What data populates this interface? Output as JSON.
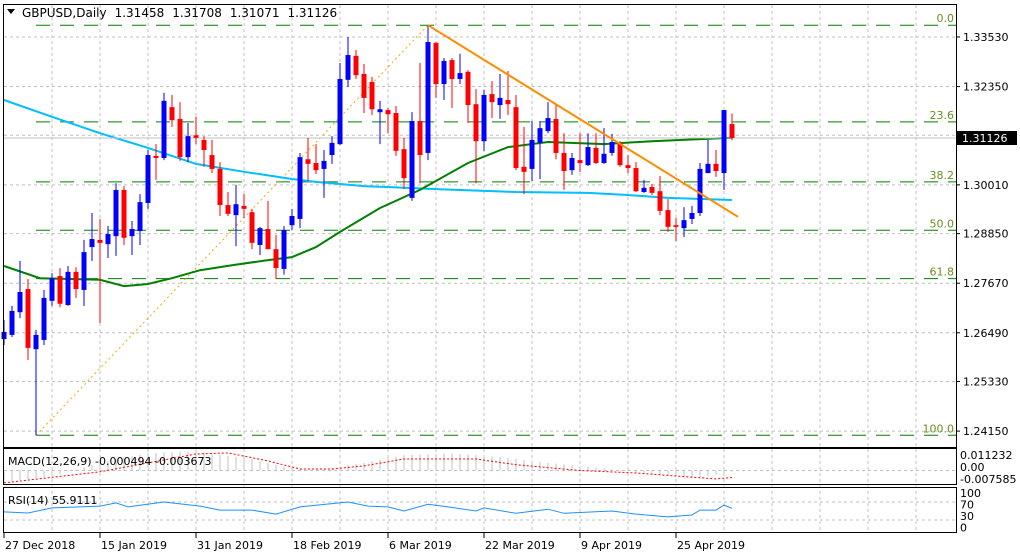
{
  "header": {
    "symbol_timeframe": "GBPUSD,Daily",
    "open": "1.31458",
    "high": "1.31708",
    "low": "1.31071",
    "close": "1.31126"
  },
  "colors": {
    "bull": "#0000ff",
    "bear": "#ff0000",
    "ma_long": "#00bfff",
    "ma_mid": "#008000",
    "trendline": "#ff8c00",
    "fib": "#008000",
    "macd_hist": "#c0c0c0",
    "macd_signal": "#ff0000",
    "rsi": "#1e90ff",
    "grid": "#c0c0c0"
  },
  "price_axis": {
    "labels": [
      "1.33530",
      "1.32350",
      "1.30010",
      "1.28850",
      "1.27670",
      "1.26490",
      "1.25330",
      "1.24150"
    ],
    "current_price": "1.31126"
  },
  "date_axis": {
    "labels": [
      "27 Dec 2018",
      "15 Jan 2019",
      "31 Jan 2019",
      "18 Feb 2019",
      "6 Mar 2019",
      "22 Mar 2019",
      "9 Apr 2019",
      "25 Apr 2019"
    ],
    "label_bars": [
      0,
      12,
      24,
      36,
      48,
      60,
      72,
      84
    ]
  },
  "chart_data": {
    "type": "candlestick",
    "symbol": "GBPUSD",
    "timeframe": "Daily",
    "ylim": [
      1.2403,
      1.3441
    ],
    "ohlc": [
      [
        1.2634,
        1.2679,
        1.262,
        1.2651
      ],
      [
        1.2644,
        1.2713,
        1.2639,
        1.2701
      ],
      [
        1.2698,
        1.282,
        1.2684,
        1.2746
      ],
      [
        1.2753,
        1.2777,
        1.2584,
        1.2613
      ],
      [
        1.261,
        1.2656,
        1.2405,
        1.2644
      ],
      [
        1.2632,
        1.2751,
        1.262,
        1.2732
      ],
      [
        1.2725,
        1.2791,
        1.2713,
        1.2779
      ],
      [
        1.2784,
        1.2803,
        1.271,
        1.2718
      ],
      [
        1.2715,
        1.2808,
        1.2713,
        1.2794
      ],
      [
        1.2794,
        1.2805,
        1.2732,
        1.2753
      ],
      [
        1.2751,
        1.287,
        1.2713,
        1.2841
      ],
      [
        1.2853,
        1.2934,
        1.282,
        1.2872
      ],
      [
        1.287,
        1.292,
        1.2672,
        1.2863
      ],
      [
        1.286,
        1.2903,
        1.2827,
        1.2884
      ],
      [
        1.2879,
        1.3005,
        1.2832,
        1.2989
      ],
      [
        1.2989,
        1.2998,
        1.2858,
        1.2875
      ],
      [
        1.2879,
        1.2915,
        1.2834,
        1.2896
      ],
      [
        1.2891,
        1.2979,
        1.2858,
        1.296
      ],
      [
        1.2958,
        1.3084,
        1.2944,
        1.3072
      ],
      [
        1.307,
        1.3098,
        1.3013,
        1.3065
      ],
      [
        1.3065,
        1.322,
        1.306,
        1.3201
      ],
      [
        1.3186,
        1.3215,
        1.3139,
        1.3155
      ],
      [
        1.3158,
        1.3198,
        1.3058,
        1.3067
      ],
      [
        1.3067,
        1.3148,
        1.3055,
        1.3117
      ],
      [
        1.3119,
        1.3163,
        1.3098,
        1.3113
      ],
      [
        1.3108,
        1.3117,
        1.3044,
        1.3084
      ],
      [
        1.3072,
        1.3108,
        1.3029,
        1.3039
      ],
      [
        1.3039,
        1.3055,
        1.2927,
        1.2953
      ],
      [
        1.2953,
        1.2984,
        1.2927,
        1.2932
      ],
      [
        1.2929,
        1.3001,
        1.2855,
        1.2955
      ],
      [
        1.2951,
        1.2979,
        1.2922,
        1.2944
      ],
      [
        1.2936,
        1.2944,
        1.2848,
        1.2863
      ],
      [
        1.2858,
        1.2901,
        1.2834,
        1.2898
      ],
      [
        1.2896,
        1.2963,
        1.2848,
        1.2848
      ],
      [
        1.2848,
        1.2882,
        1.2777,
        1.2803
      ],
      [
        1.2801,
        1.2903,
        1.2787,
        1.2893
      ],
      [
        1.2905,
        1.2944,
        1.2893,
        1.2927
      ],
      [
        1.292,
        1.3077,
        1.2898,
        1.3067
      ],
      [
        1.3062,
        1.3113,
        1.301,
        1.3051
      ],
      [
        1.3053,
        1.3098,
        1.3027,
        1.3036
      ],
      [
        1.3039,
        1.3084,
        1.297,
        1.3058
      ],
      [
        1.3072,
        1.3117,
        1.3051,
        1.3101
      ],
      [
        1.3098,
        1.3291,
        1.3096,
        1.3253
      ],
      [
        1.3251,
        1.3353,
        1.3234,
        1.331
      ],
      [
        1.3308,
        1.3322,
        1.3253,
        1.3262
      ],
      [
        1.3265,
        1.3289,
        1.3172,
        1.3208
      ],
      [
        1.3246,
        1.3258,
        1.3167,
        1.3181
      ],
      [
        1.3174,
        1.3201,
        1.3098,
        1.3181
      ],
      [
        1.3179,
        1.3184,
        1.3124,
        1.3169
      ],
      [
        1.3172,
        1.3189,
        1.307,
        1.3082
      ],
      [
        1.3086,
        1.3113,
        1.2991,
        1.3017
      ],
      [
        1.297,
        1.3174,
        1.2963,
        1.3153
      ],
      [
        1.3153,
        1.3291,
        1.3005,
        1.3072
      ],
      [
        1.3077,
        1.3381,
        1.306,
        1.3341
      ],
      [
        1.3339,
        1.3341,
        1.3208,
        1.3241
      ],
      [
        1.3241,
        1.3303,
        1.3203,
        1.3296
      ],
      [
        1.3298,
        1.3303,
        1.3184,
        1.3253
      ],
      [
        1.3253,
        1.3313,
        1.3241,
        1.3267
      ],
      [
        1.327,
        1.3274,
        1.3148,
        1.3191
      ],
      [
        1.3193,
        1.3229,
        1.3005,
        1.3105
      ],
      [
        1.3105,
        1.3227,
        1.3082,
        1.3215
      ],
      [
        1.3217,
        1.3248,
        1.316,
        1.3198
      ],
      [
        1.3191,
        1.3265,
        1.3158,
        1.3208
      ],
      [
        1.3203,
        1.3272,
        1.3167,
        1.3193
      ],
      [
        1.3186,
        1.3215,
        1.3036,
        1.3041
      ],
      [
        1.3044,
        1.3139,
        1.2979,
        1.3032
      ],
      [
        1.3039,
        1.3153,
        1.301,
        1.3108
      ],
      [
        1.3101,
        1.3153,
        1.3015,
        1.3136
      ],
      [
        1.3129,
        1.3198,
        1.3124,
        1.316
      ],
      [
        1.3158,
        1.3193,
        1.3062,
        1.3077
      ],
      [
        1.3077,
        1.3124,
        1.2989,
        1.3034
      ],
      [
        1.3036,
        1.3077,
        1.3025,
        1.3065
      ],
      [
        1.306,
        1.3124,
        1.3032,
        1.3053
      ],
      [
        1.3048,
        1.3124,
        1.3046,
        1.3091
      ],
      [
        1.3089,
        1.3124,
        1.3051,
        1.3053
      ],
      [
        1.3053,
        1.3136,
        1.3051,
        1.3075
      ],
      [
        1.3077,
        1.3122,
        1.307,
        1.3103
      ],
      [
        1.3101,
        1.3105,
        1.3044,
        1.3048
      ],
      [
        1.3048,
        1.3072,
        1.3029,
        1.3041
      ],
      [
        1.3041,
        1.3055,
        1.2984,
        1.2986
      ],
      [
        1.2984,
        1.3013,
        1.2982,
        1.2994
      ],
      [
        1.2996,
        1.3003,
        1.2977,
        1.2982
      ],
      [
        1.2986,
        1.3022,
        1.2929,
        1.2939
      ],
      [
        1.2941,
        1.2967,
        1.2889,
        1.2901
      ],
      [
        1.2905,
        1.2922,
        1.2867,
        1.2901
      ],
      [
        1.2898,
        1.2948,
        1.2877,
        1.2917
      ],
      [
        1.292,
        1.2951,
        1.2908,
        1.2934
      ],
      [
        1.2934,
        1.3053,
        1.2927,
        1.3039
      ],
      [
        1.3029,
        1.3108,
        1.3029,
        1.3051
      ],
      [
        1.3051,
        1.3084,
        1.302,
        1.3034
      ],
      [
        1.3029,
        1.3179,
        1.2989,
        1.3179
      ],
      [
        1.31458,
        1.31708,
        1.31071,
        1.31126
      ]
    ],
    "moving_average_long": [
      [
        0,
        1.3203
      ],
      [
        6,
        1.3163
      ],
      [
        12,
        1.3124
      ],
      [
        18,
        1.3089
      ],
      [
        24,
        1.3051
      ],
      [
        30,
        1.3032
      ],
      [
        36,
        1.3015
      ],
      [
        39,
        1.3008
      ],
      [
        45,
        1.2998
      ],
      [
        54,
        1.2991
      ],
      [
        64,
        1.2984
      ],
      [
        73,
        1.2982
      ],
      [
        78,
        1.2977
      ],
      [
        83,
        1.297
      ],
      [
        91,
        1.2965
      ]
    ],
    "moving_average_mid": [
      [
        0,
        1.2808
      ],
      [
        4.5,
        1.2779
      ],
      [
        12,
        1.2775
      ],
      [
        15,
        1.276
      ],
      [
        18,
        1.2765
      ],
      [
        21,
        1.2779
      ],
      [
        24.5,
        1.2798
      ],
      [
        28.6,
        1.281
      ],
      [
        33,
        1.2822
      ],
      [
        36,
        1.2829
      ],
      [
        39,
        1.2853
      ],
      [
        42,
        1.2889
      ],
      [
        47,
        1.2946
      ],
      [
        52,
        1.2989
      ],
      [
        58,
        1.3053
      ],
      [
        63,
        1.3091
      ],
      [
        68,
        1.3103
      ],
      [
        75,
        1.3098
      ],
      [
        81,
        1.3105
      ],
      [
        87,
        1.311
      ],
      [
        91,
        1.3113
      ]
    ],
    "trendline": {
      "from": [
        53,
        1.3381
      ],
      "to": [
        91.75,
        1.2925
      ]
    },
    "fibonacci": {
      "from": [
        4,
        1.2405
      ],
      "to": [
        53,
        1.3381
      ],
      "levels": [
        {
          "label": "0.0",
          "price": 1.3381
        },
        {
          "label": "23.6",
          "price": 1.3151
        },
        {
          "label": "38.2",
          "price": 1.3008
        },
        {
          "label": "50.0",
          "price": 1.2893
        },
        {
          "label": "61.8",
          "price": 1.2778
        },
        {
          "label": "100.0",
          "price": 1.2405
        }
      ]
    },
    "macd": {
      "label": "MACD(12,26,9) -0.000494 -0.003673",
      "axis_labels": [
        "0.011232",
        "0.00",
        "-0.007585"
      ],
      "ylim": [
        -0.007585,
        0.011232
      ],
      "main": [
        [
          0,
          -0.006
        ],
        [
          6,
          -0.003
        ],
        [
          12,
          0.004
        ],
        [
          18,
          0.009
        ],
        [
          24,
          0.01
        ],
        [
          31,
          0.006
        ],
        [
          36,
          0.001
        ],
        [
          39,
          0.0
        ],
        [
          45,
          0.004
        ],
        [
          50,
          0.008
        ],
        [
          56,
          0.009
        ],
        [
          62,
          0.007
        ],
        [
          68,
          0.004
        ],
        [
          75,
          0.001
        ],
        [
          81,
          -0.002
        ],
        [
          86,
          -0.004
        ],
        [
          89.5,
          -0.002
        ],
        [
          91,
          -0.000494
        ]
      ],
      "signal": [
        [
          0,
          -0.0065
        ],
        [
          12,
          -0.0007
        ],
        [
          24,
          0.0086
        ],
        [
          28,
          0.0092
        ],
        [
          33,
          0.005
        ],
        [
          37,
          0.0008
        ],
        [
          41,
          0.0008
        ],
        [
          45,
          0.0024
        ],
        [
          50,
          0.006
        ],
        [
          59,
          0.006
        ],
        [
          64,
          0.003
        ],
        [
          72,
          0.0
        ],
        [
          79,
          -0.0013
        ],
        [
          84,
          -0.0029
        ],
        [
          89,
          -0.0044
        ],
        [
          91,
          -0.003673
        ]
      ]
    },
    "rsi": {
      "label": "RSI(14) 55.9111",
      "axis_labels": [
        "100",
        "70",
        "30",
        "0"
      ],
      "levels": [
        70,
        30
      ],
      "values": [
        [
          0,
          48
        ],
        [
          3,
          45.5
        ],
        [
          6,
          57
        ],
        [
          12,
          61
        ],
        [
          14,
          68
        ],
        [
          15.5,
          59
        ],
        [
          20,
          70
        ],
        [
          24.5,
          61
        ],
        [
          27,
          52
        ],
        [
          31,
          52
        ],
        [
          34,
          43
        ],
        [
          37,
          59
        ],
        [
          43,
          70
        ],
        [
          45.5,
          61
        ],
        [
          48,
          59
        ],
        [
          50,
          50
        ],
        [
          53,
          65
        ],
        [
          55.5,
          59
        ],
        [
          59,
          50
        ],
        [
          60,
          57
        ],
        [
          64,
          45
        ],
        [
          68,
          54
        ],
        [
          70,
          45
        ],
        [
          76,
          50
        ],
        [
          79,
          43
        ],
        [
          83,
          37
        ],
        [
          86,
          41
        ],
        [
          87,
          52
        ],
        [
          89,
          52
        ],
        [
          90,
          63
        ],
        [
          91,
          55.9111
        ]
      ]
    }
  }
}
